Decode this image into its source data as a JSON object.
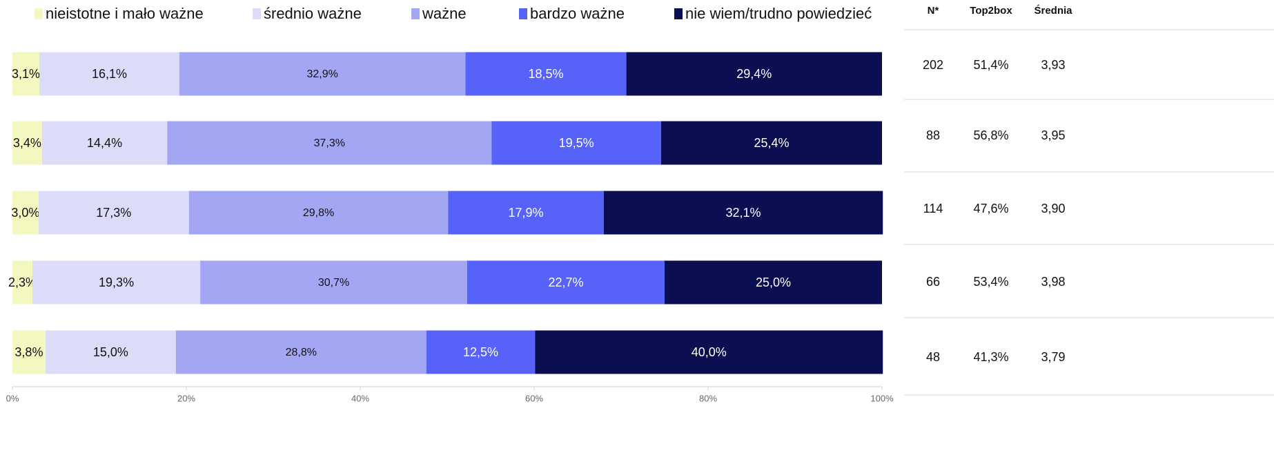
{
  "chart_data": {
    "type": "stacked_barh",
    "categories": [
      null,
      null,
      null,
      null,
      null
    ],
    "series": [
      {
        "name": "nieistotne i mało ważne",
        "color": "#f3f8c0",
        "label_color": "#111111",
        "values": [
          3.1,
          3.4,
          3.0,
          2.3,
          3.8
        ],
        "value_labels": [
          "3,1%",
          "3,4%",
          "3,0%",
          "2,3%",
          "3,8%"
        ]
      },
      {
        "name": "średnio ważne",
        "color": "#dcdcf8",
        "label_color": "#111111",
        "values": [
          16.1,
          14.4,
          17.3,
          19.3,
          15.0
        ],
        "value_labels": [
          "16,1%",
          "14,4%",
          "17,3%",
          "19,3%",
          "15,0%"
        ]
      },
      {
        "name": "ważne",
        "color": "#a3a6f2",
        "label_color": "#111111",
        "values": [
          32.9,
          37.3,
          29.8,
          30.7,
          28.8
        ],
        "value_labels": [
          "32,9%",
          "37,3%",
          "29,8%",
          "30,7%",
          "28,8%"
        ]
      },
      {
        "name": "bardzo ważne",
        "color": "#5763f8",
        "label_color": "#ffffff",
        "values": [
          18.5,
          19.5,
          17.9,
          22.7,
          12.5
        ],
        "value_labels": [
          "18,5%",
          "19,5%",
          "17,9%",
          "22,7%",
          "12,5%"
        ]
      },
      {
        "name": "nie wiem/trudno powiedzieć",
        "color": "#0c0e52",
        "label_color": "#ffffff",
        "values": [
          29.4,
          25.4,
          32.1,
          25.0,
          40.0
        ],
        "value_labels": [
          "29,4%",
          "25,4%",
          "32,1%",
          "25,0%",
          "40,0%"
        ]
      }
    ],
    "xlim": [
      0,
      100
    ],
    "xticks": [
      {
        "value": 0,
        "label": "0%"
      },
      {
        "value": 20,
        "label": "20%"
      },
      {
        "value": 40,
        "label": "40%"
      },
      {
        "value": 60,
        "label": "60%"
      },
      {
        "value": 80,
        "label": "80%"
      },
      {
        "value": 100,
        "label": "100%"
      }
    ]
  },
  "table": {
    "header": [
      "N*",
      "Top2box",
      "Średnia"
    ],
    "rows": [
      [
        "202",
        "51,4%",
        "3,93"
      ],
      [
        "88",
        "56,8%",
        "3,95"
      ],
      [
        "114",
        "47,6%",
        "3,90"
      ],
      [
        "66",
        "53,4%",
        "3,98"
      ],
      [
        "48",
        "41,3%",
        "3,79"
      ]
    ]
  }
}
